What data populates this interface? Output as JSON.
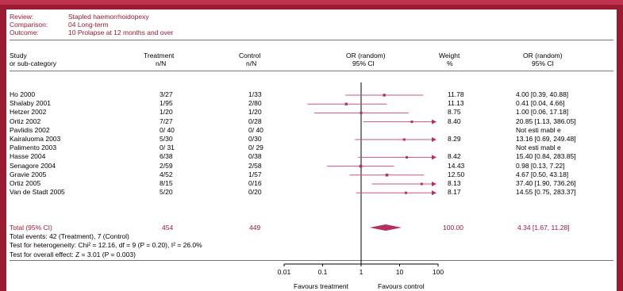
{
  "header": {
    "review_label": "Review:",
    "review_value": "Stapled haemorrhoidopexy",
    "comparison_label": "Comparison:",
    "comparison_value": "04 Long-term",
    "outcome_label": "Outcome:",
    "outcome_value": "10 Prolapse at 12 months and over"
  },
  "columns": {
    "study": [
      "Study",
      "or sub-category"
    ],
    "treatment": [
      "Treatment",
      "n/N"
    ],
    "control": [
      "Control",
      "n/N"
    ],
    "or_plot": [
      "OR (random)",
      "95% CI"
    ],
    "weight": [
      "Weight",
      "%"
    ],
    "or_text": [
      "OR (random)",
      "95% CI"
    ]
  },
  "colors": {
    "accent": "#9b1b30",
    "marker": "#b5305a",
    "ci_line": "#c75a78"
  },
  "chart_data": {
    "type": "forest",
    "x_scale": "log",
    "x_ticks": [
      0.01,
      0.1,
      1,
      10,
      100
    ],
    "x_tick_labels": [
      "0.01",
      "0.1",
      "1",
      "10",
      "100"
    ],
    "favours_left": "Favours treatment",
    "favours_right": "Favours control",
    "studies": [
      {
        "name": "Ho 2000",
        "treatment": "3/27",
        "control": "1/33",
        "or": 4.0,
        "lo": 0.39,
        "hi": 40.88,
        "weight": "11.78",
        "ci_text": "4.00 [0.39, 40.88]"
      },
      {
        "name": "Shalaby 2001",
        "treatment": "1/95",
        "control": "2/80",
        "or": 0.41,
        "lo": 0.04,
        "hi": 4.66,
        "weight": "11.13",
        "ci_text": "0.41 [0.04, 4.66]"
      },
      {
        "name": "Hetzer 2002",
        "treatment": "1/20",
        "control": "1/20",
        "or": 1.0,
        "lo": 0.06,
        "hi": 17.18,
        "weight": "8.75",
        "ci_text": "1.00 [0.06, 17.18]"
      },
      {
        "name": "Ortiz 2002",
        "treatment": "7/27",
        "control": "0/28",
        "or": 20.85,
        "lo": 1.13,
        "hi": 386.05,
        "weight": "8.40",
        "ci_text": "20.85 [1.13, 386.05]"
      },
      {
        "name": "Pavlidis 2002",
        "treatment": "0/ 40",
        "control": "0/ 40",
        "or": null,
        "lo": null,
        "hi": null,
        "weight": "",
        "ci_text": "Not esti mabl e"
      },
      {
        "name": "Kairaluoma 2003",
        "treatment": "5/30",
        "control": "0/30",
        "or": 13.16,
        "lo": 0.69,
        "hi": 249.48,
        "weight": "8.29",
        "ci_text": "13.16 [0.69, 249.48]"
      },
      {
        "name": "Palimento 2003",
        "treatment": "0/ 31",
        "control": "0/ 29",
        "or": null,
        "lo": null,
        "hi": null,
        "weight": "",
        "ci_text": "Not esti mabl e"
      },
      {
        "name": "Hasse 2004",
        "treatment": "6/38",
        "control": "0/38",
        "or": 15.4,
        "lo": 0.84,
        "hi": 283.85,
        "weight": "8.42",
        "ci_text": "15.40 [0.84, 283.85]"
      },
      {
        "name": "Senagore 2004",
        "treatment": "2/59",
        "control": "2/58",
        "or": 0.98,
        "lo": 0.13,
        "hi": 7.22,
        "weight": "14.43",
        "ci_text": "0.98 [0.13, 7.22]"
      },
      {
        "name": "Gravie 2005",
        "treatment": "4/52",
        "control": "1/57",
        "or": 4.67,
        "lo": 0.5,
        "hi": 43.18,
        "weight": "12.50",
        "ci_text": "4.67 [0.50, 43.18]"
      },
      {
        "name": "Ortiz 2005",
        "treatment": "8/15",
        "control": "0/16",
        "or": 37.4,
        "lo": 1.9,
        "hi": 736.26,
        "weight": "8.13",
        "ci_text": "37.40 [1.90, 736.26]"
      },
      {
        "name": "Van de Stadt 2005",
        "treatment": "5/20",
        "control": "0/20",
        "or": 14.55,
        "lo": 0.75,
        "hi": 283.37,
        "weight": "8.17",
        "ci_text": "14.55 [0.75, 283.37]"
      }
    ],
    "total": {
      "name": "Total (95% CI)",
      "treatment": "454",
      "control": "449",
      "or": 4.34,
      "lo": 1.67,
      "hi": 11.28,
      "weight": "100.00",
      "ci_text": "4.34 [1.67, 11.28]"
    },
    "footnotes": [
      "Total events: 42 (Treatment), 7 (Control)",
      "Test for heterogeneity: Chi² = 12.16, df = 9 (P = 0.20), I² = 26.0%",
      "Test for overall effect: Z = 3.01 (P = 0.003)"
    ]
  }
}
